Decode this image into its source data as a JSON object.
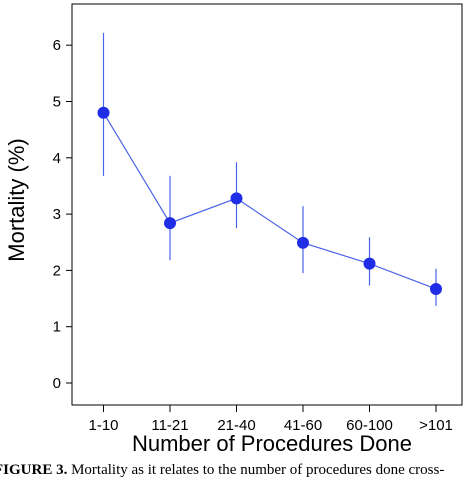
{
  "chart_data": {
    "type": "line",
    "categories": [
      "1-10",
      "11-21",
      "21-40",
      "41-60",
      "60-100",
      ">101"
    ],
    "series": [
      {
        "values": [
          4.8,
          2.84,
          3.28,
          2.49,
          2.12,
          1.67
        ],
        "error_low": [
          3.68,
          2.18,
          2.75,
          1.95,
          1.73,
          1.37
        ],
        "error_high": [
          6.22,
          3.68,
          3.92,
          3.14,
          2.59,
          2.03
        ],
        "color": "#1f2ee6",
        "line_color": "#4a63e8"
      }
    ],
    "title": "",
    "xlabel": "Number of Procedures Done",
    "ylabel": "Mortality (%)",
    "ylim": [
      0,
      6
    ],
    "yticks": [
      0,
      1,
      2,
      3,
      4,
      5,
      6
    ],
    "grid": false
  },
  "caption": {
    "label": "FIGURE 3.",
    "text": "Mortality as it relates to the number of procedures done cross-"
  }
}
